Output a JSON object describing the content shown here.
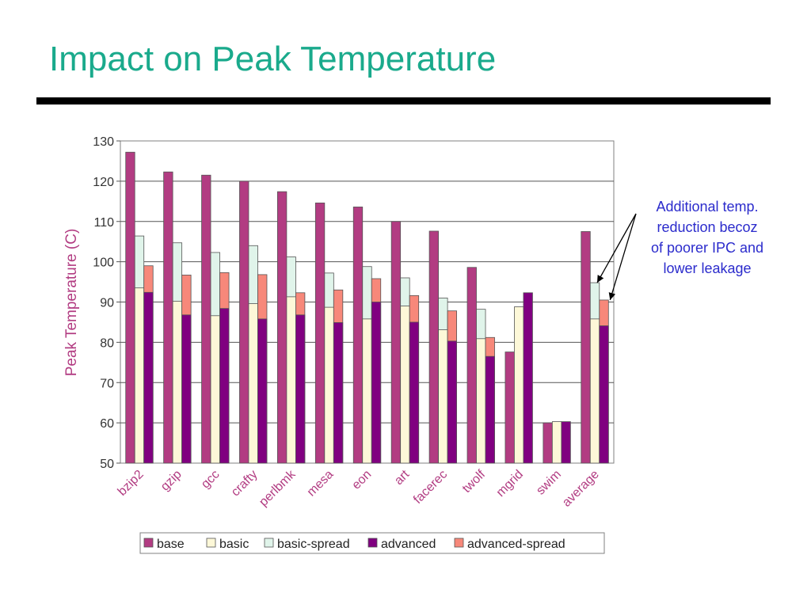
{
  "slide": {
    "title": "Impact on Peak Temperature"
  },
  "annotation": {
    "lines": [
      "Additional temp.",
      "reduction becoz",
      "of poorer IPC and",
      "lower leakage"
    ]
  },
  "chart_data": {
    "type": "bar",
    "title": "",
    "xlabel": "",
    "ylabel": "Peak Temperature (C)",
    "ylim": [
      50,
      130
    ],
    "yticks": [
      50,
      60,
      70,
      80,
      90,
      100,
      110,
      120,
      130
    ],
    "grid": true,
    "legend_position": "bottom",
    "categories": [
      "bzip2",
      "gzip",
      "gcc",
      "crafty",
      "perlbmk",
      "mesa",
      "eon",
      "art",
      "facerec",
      "twolf",
      "mgrid",
      "swim",
      "average"
    ],
    "series": [
      {
        "name": "base",
        "color": "#b23c82",
        "values": [
          127.2,
          122.3,
          121.5,
          120.0,
          117.4,
          114.6,
          113.6,
          110.0,
          107.6,
          98.6,
          77.6,
          60.0,
          107.5
        ]
      },
      {
        "name": "basic",
        "color": "#fdf8d8",
        "values": [
          93.5,
          90.2,
          86.6,
          89.6,
          91.3,
          88.7,
          85.8,
          89.0,
          83.1,
          80.9,
          88.8,
          60.3,
          85.8
        ]
      },
      {
        "name": "basic-spread",
        "color": "#e0f4ea",
        "values": [
          106.4,
          104.7,
          102.3,
          104.0,
          101.2,
          97.2,
          98.8,
          96.0,
          91.0,
          88.2,
          null,
          null,
          94.8
        ]
      },
      {
        "name": "advanced",
        "color": "#800080",
        "values": [
          92.4,
          86.8,
          88.4,
          85.8,
          86.8,
          84.9,
          90.0,
          85.0,
          80.3,
          76.5,
          92.3,
          60.3,
          84.1
        ]
      },
      {
        "name": "advanced-spread",
        "color": "#f7887a",
        "values": [
          99.0,
          96.7,
          97.3,
          96.8,
          92.3,
          93.0,
          95.8,
          91.6,
          87.8,
          81.2,
          null,
          null,
          90.5
        ]
      }
    ]
  }
}
